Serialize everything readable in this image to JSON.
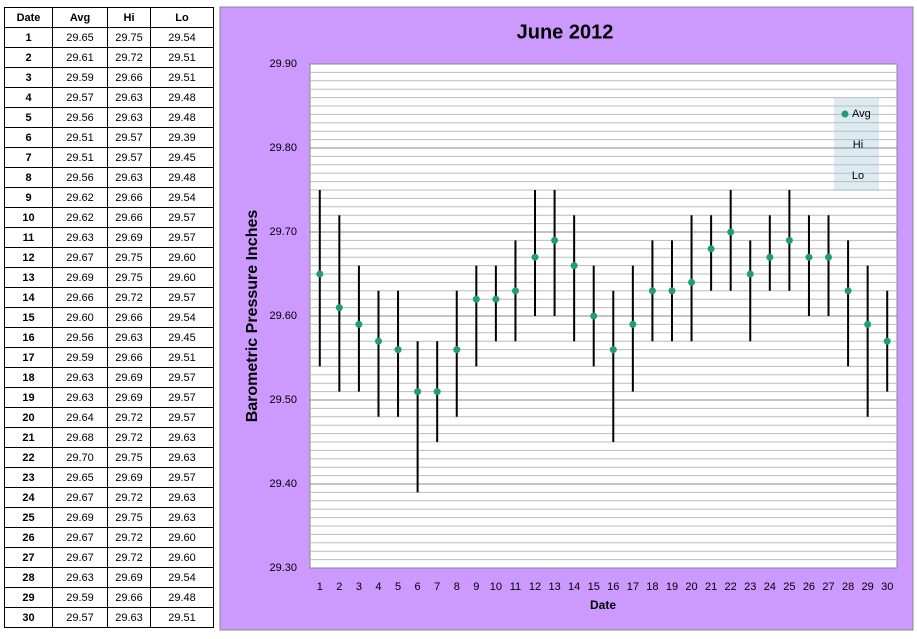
{
  "table": {
    "header": [
      "Date",
      "Avg",
      "Hi",
      "Lo"
    ],
    "rows": [
      [
        "1",
        "29.65",
        "29.75",
        "29.54"
      ],
      [
        "2",
        "29.61",
        "29.72",
        "29.51"
      ],
      [
        "3",
        "29.59",
        "29.66",
        "29.51"
      ],
      [
        "4",
        "29.57",
        "29.63",
        "29.48"
      ],
      [
        "5",
        "29.56",
        "29.63",
        "29.48"
      ],
      [
        "6",
        "29.51",
        "29.57",
        "29.39"
      ],
      [
        "7",
        "29.51",
        "29.57",
        "29.45"
      ],
      [
        "8",
        "29.56",
        "29.63",
        "29.48"
      ],
      [
        "9",
        "29.62",
        "29.66",
        "29.54"
      ],
      [
        "10",
        "29.62",
        "29.66",
        "29.57"
      ],
      [
        "11",
        "29.63",
        "29.69",
        "29.57"
      ],
      [
        "12",
        "29.67",
        "29.75",
        "29.60"
      ],
      [
        "13",
        "29.69",
        "29.75",
        "29.60"
      ],
      [
        "14",
        "29.66",
        "29.72",
        "29.57"
      ],
      [
        "15",
        "29.60",
        "29.66",
        "29.54"
      ],
      [
        "16",
        "29.56",
        "29.63",
        "29.45"
      ],
      [
        "17",
        "29.59",
        "29.66",
        "29.51"
      ],
      [
        "18",
        "29.63",
        "29.69",
        "29.57"
      ],
      [
        "19",
        "29.63",
        "29.69",
        "29.57"
      ],
      [
        "20",
        "29.64",
        "29.72",
        "29.57"
      ],
      [
        "21",
        "29.68",
        "29.72",
        "29.63"
      ],
      [
        "22",
        "29.70",
        "29.75",
        "29.63"
      ],
      [
        "23",
        "29.65",
        "29.69",
        "29.57"
      ],
      [
        "24",
        "29.67",
        "29.72",
        "29.63"
      ],
      [
        "25",
        "29.69",
        "29.75",
        "29.63"
      ],
      [
        "26",
        "29.67",
        "29.72",
        "29.60"
      ],
      [
        "27",
        "29.67",
        "29.72",
        "29.60"
      ],
      [
        "28",
        "29.63",
        "29.69",
        "29.54"
      ],
      [
        "29",
        "29.59",
        "29.66",
        "29.48"
      ],
      [
        "30",
        "29.57",
        "29.63",
        "29.51"
      ]
    ]
  },
  "chart_data": {
    "type": "errorbar",
    "title": "June 2012",
    "x_label": "Date",
    "y_label": "Barometric Pressure Inches",
    "categories": [
      1,
      2,
      3,
      4,
      5,
      6,
      7,
      8,
      9,
      10,
      11,
      12,
      13,
      14,
      15,
      16,
      17,
      18,
      19,
      20,
      21,
      22,
      23,
      24,
      25,
      26,
      27,
      28,
      29,
      30
    ],
    "series": [
      {
        "name": "Avg",
        "color": "#1f9e72",
        "values": [
          29.65,
          29.61,
          29.59,
          29.57,
          29.56,
          29.51,
          29.51,
          29.56,
          29.62,
          29.62,
          29.63,
          29.67,
          29.69,
          29.66,
          29.6,
          29.56,
          29.59,
          29.63,
          29.63,
          29.64,
          29.68,
          29.7,
          29.65,
          29.67,
          29.69,
          29.67,
          29.67,
          29.63,
          29.59,
          29.57
        ]
      },
      {
        "name": "Hi",
        "color": "#000000",
        "values": [
          29.75,
          29.72,
          29.66,
          29.63,
          29.63,
          29.57,
          29.57,
          29.63,
          29.66,
          29.66,
          29.69,
          29.75,
          29.75,
          29.72,
          29.66,
          29.63,
          29.66,
          29.69,
          29.69,
          29.72,
          29.72,
          29.75,
          29.69,
          29.72,
          29.75,
          29.72,
          29.72,
          29.69,
          29.66,
          29.63
        ]
      },
      {
        "name": "Lo",
        "color": "#000000",
        "values": [
          29.54,
          29.51,
          29.51,
          29.48,
          29.48,
          29.39,
          29.45,
          29.48,
          29.54,
          29.57,
          29.57,
          29.6,
          29.6,
          29.57,
          29.54,
          29.45,
          29.51,
          29.57,
          29.57,
          29.57,
          29.63,
          29.63,
          29.57,
          29.63,
          29.63,
          29.6,
          29.6,
          29.54,
          29.48,
          29.51
        ]
      }
    ],
    "ylim": [
      29.3,
      29.9
    ],
    "yticks": [
      {
        "value": 29.3,
        "label": "29.30"
      },
      {
        "value": 29.4,
        "label": "29.40"
      },
      {
        "value": 29.5,
        "label": "29.50"
      },
      {
        "value": 29.6,
        "label": "29.60"
      },
      {
        "value": 29.7,
        "label": "29.70"
      },
      {
        "value": 29.8,
        "label": "29.80"
      },
      {
        "value": 29.9,
        "label": "29.90"
      }
    ],
    "minor_grid": 0.01,
    "grid": true,
    "legend": "upper right",
    "background": "#cc99ff"
  }
}
